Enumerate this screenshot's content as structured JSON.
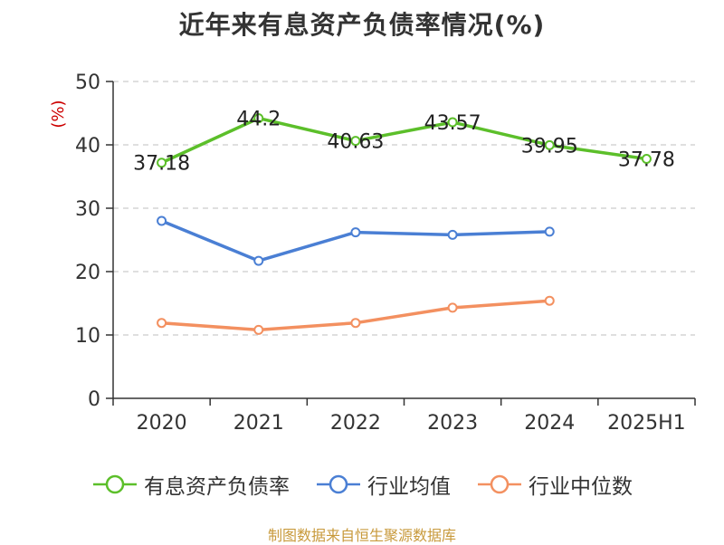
{
  "title": "近年来有息资产负债率情况(%)",
  "source": "制图数据来自恒生聚源数据库",
  "colors": {
    "company": "#5cbf2a",
    "industry_avg": "#4a7fd4",
    "industry_median": "#f39060",
    "unit_label": "#cc0000",
    "axis": "#333333",
    "grid": "#cccccc"
  },
  "chart_data": {
    "type": "line",
    "title": "近年来有息资产负债率情况(%)",
    "ylabel": "(%)",
    "xlabel": "",
    "categories": [
      "2020",
      "2021",
      "2022",
      "2023",
      "2024",
      "2025H1"
    ],
    "ylim": [
      0,
      50
    ],
    "yticks": [
      0,
      10,
      20,
      30,
      40,
      50
    ],
    "grid": true,
    "legend": "bottom",
    "series": [
      {
        "name": "有息资产负债率",
        "values": [
          37.18,
          44.2,
          40.63,
          43.57,
          39.95,
          37.78
        ],
        "labels": [
          "37.18",
          "44.2",
          "40.63",
          "43.57",
          "39.95",
          "37.78"
        ],
        "color_key": "company"
      },
      {
        "name": "行业均值",
        "values": [
          28.0,
          21.7,
          26.2,
          25.8,
          26.3,
          null
        ],
        "color_key": "industry_avg"
      },
      {
        "name": "行业中位数",
        "values": [
          11.9,
          10.8,
          11.9,
          14.3,
          15.4,
          null
        ],
        "color_key": "industry_median"
      }
    ]
  }
}
